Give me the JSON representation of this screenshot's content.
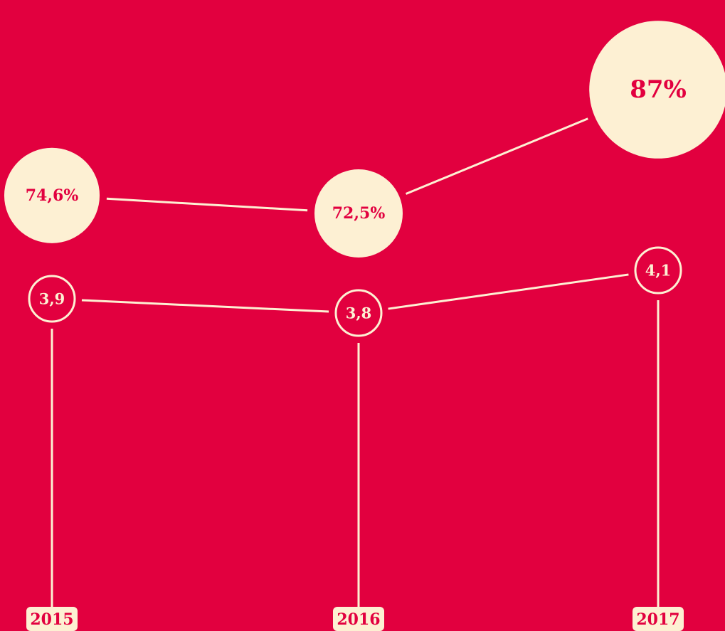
{
  "chart_data": {
    "type": "line",
    "categories": [
      "2015",
      "2016",
      "2017"
    ],
    "series": [
      {
        "color": "#fdf0d3",
        "values": [
          74.6,
          72.5,
          87
        ],
        "value_labels": [
          "74,6%",
          "72,5%",
          "87%"
        ]
      },
      {
        "color": "#fdf0d3",
        "values": [
          3.9,
          3.8,
          4.1
        ],
        "value_labels": [
          "3,9",
          "3,8",
          "4,1"
        ]
      }
    ]
  }
}
